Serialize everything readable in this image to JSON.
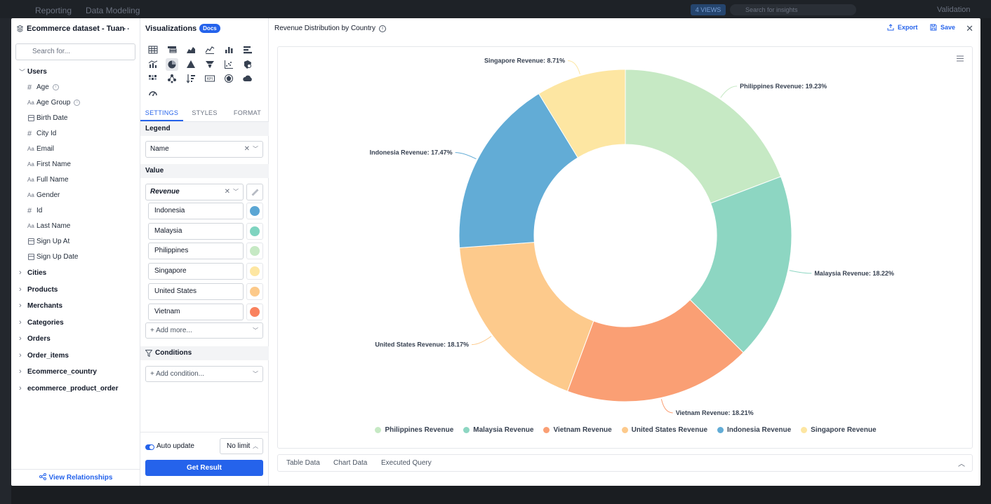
{
  "background": {
    "tabs": [
      "Reporting",
      "Data Modeling"
    ],
    "chip": "4 VIEWS",
    "search_placeholder": "Search for insights",
    "user": "Validation"
  },
  "dataset": {
    "title": "Ecommerce dataset - Tuan",
    "search_placeholder": "Search for...",
    "users_group": "Users",
    "fields": [
      {
        "type": "#",
        "name": "Age",
        "info": true
      },
      {
        "type": "Aa",
        "name": "Age Group",
        "info": true
      },
      {
        "type": "cal",
        "name": "Birth Date"
      },
      {
        "type": "#",
        "name": "City Id"
      },
      {
        "type": "Aa",
        "name": "Email"
      },
      {
        "type": "Aa",
        "name": "First Name"
      },
      {
        "type": "Aa",
        "name": "Full Name"
      },
      {
        "type": "Aa",
        "name": "Gender"
      },
      {
        "type": "#",
        "name": "Id"
      },
      {
        "type": "Aa",
        "name": "Last Name"
      },
      {
        "type": "cal",
        "name": "Sign Up At"
      },
      {
        "type": "cal",
        "name": "Sign Up Date"
      }
    ],
    "groups": [
      "Cities",
      "Products",
      "Merchants",
      "Categories",
      "Orders",
      "Order_items",
      "Ecommerce_country",
      "ecommerce_product_order"
    ],
    "view_relationships": "View Relationships"
  },
  "viz_panel": {
    "title": "Visualizations",
    "docs": "Docs",
    "tabs": [
      "SETTINGS",
      "STYLES",
      "FORMAT"
    ],
    "legend_label": "Legend",
    "legend_value": "Name",
    "value_label": "Value",
    "value_field": "Revenue",
    "values": [
      {
        "name": "Indonesia",
        "color": "#5ba6d4"
      },
      {
        "name": "Malaysia",
        "color": "#7fd4c0"
      },
      {
        "name": "Philippines",
        "color": "#c6e9c4"
      },
      {
        "name": "Singapore",
        "color": "#fde6a2"
      },
      {
        "name": "United States",
        "color": "#fcc98a"
      },
      {
        "name": "Vietnam",
        "color": "#f9825e"
      }
    ],
    "add_more": "+ Add more...",
    "conditions_label": "Conditions",
    "add_condition": "+ Add condition...",
    "auto_update": "Auto update",
    "limit": "No limit",
    "get_result": "Get Result"
  },
  "chart_panel": {
    "title": "Revenue Distribution by Country",
    "export": "Export",
    "save": "Save",
    "bottom_tabs": [
      "Table Data",
      "Chart Data",
      "Executed Query"
    ]
  },
  "chart_data": {
    "type": "pie",
    "donut": true,
    "categories": [
      "Philippines Revenue",
      "Malaysia Revenue",
      "Vietnam Revenue",
      "United States Revenue",
      "Indonesia Revenue",
      "Singapore Revenue"
    ],
    "values": [
      19.23,
      18.22,
      18.21,
      18.17,
      17.47,
      8.71
    ],
    "labels": [
      "Philippines Revenue: 19.23%",
      "Malaysia Revenue: 18.22%",
      "Vietnam Revenue: 18.21%",
      "United States Revenue: 18.17%",
      "Indonesia Revenue: 17.47%",
      "Singapore Revenue: 8.71%"
    ],
    "colors": [
      "#c6e9c4",
      "#8dd6c2",
      "#fa9f74",
      "#fdca8c",
      "#62acd6",
      "#fde6a2"
    ],
    "legend_position": "bottom"
  }
}
